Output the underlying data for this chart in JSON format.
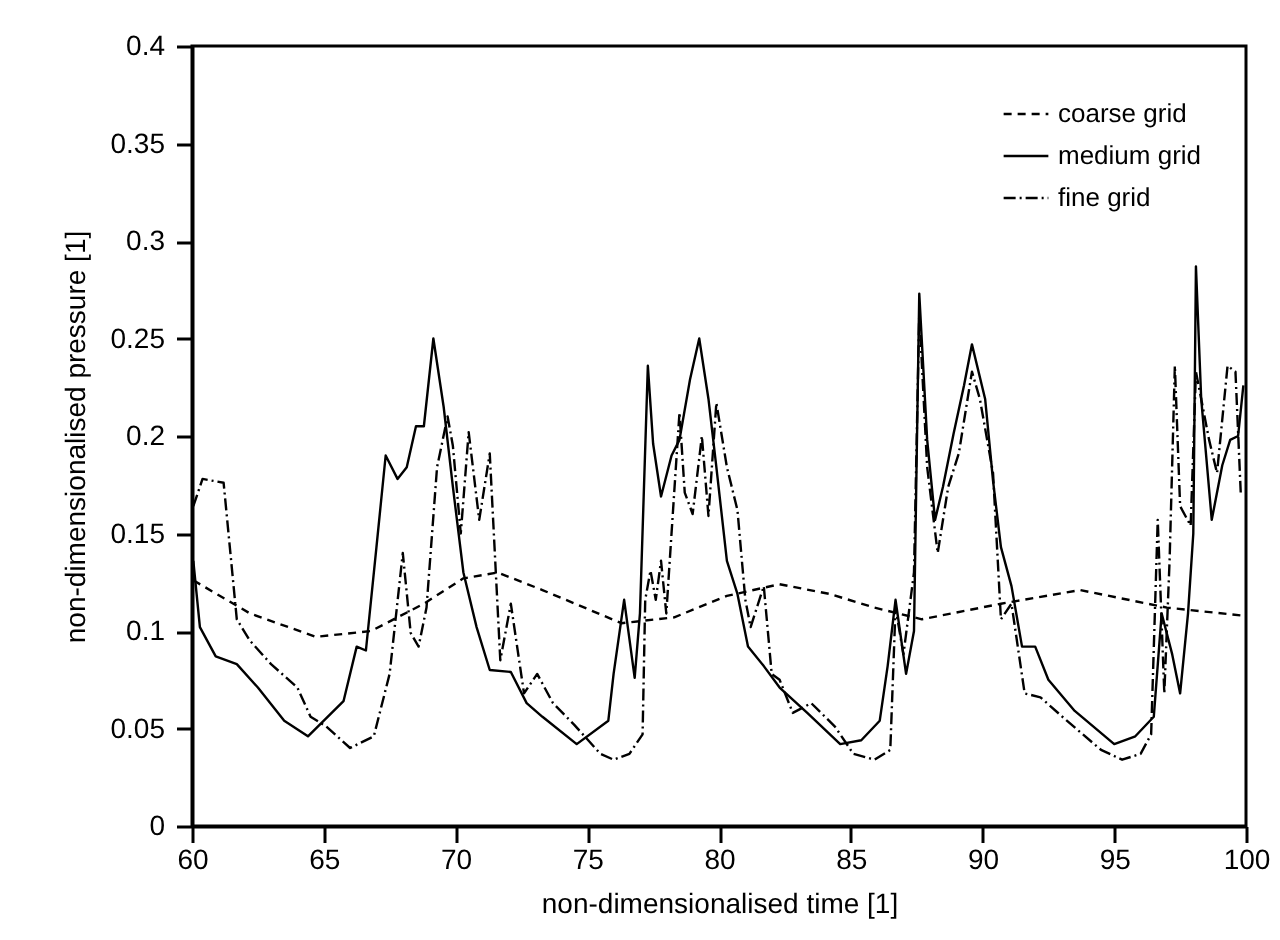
{
  "chart_data": {
    "type": "line",
    "xlabel": "non-dimensionalised time [1]",
    "ylabel": "non-dimensionalised pressure [1]",
    "xlim": [
      60,
      100
    ],
    "xticks": [
      60,
      65,
      70,
      75,
      80,
      85,
      90,
      95,
      100
    ],
    "ylim": [
      0,
      0.4
    ],
    "yticks": [
      0,
      0.05,
      0.1,
      0.15,
      0.2,
      0.25,
      0.3,
      0.35,
      0.4
    ],
    "grid": false,
    "legend": "top right",
    "marker": "none",
    "series": [
      {
        "name": "coarse grid",
        "color": "#000000",
        "line_style": "dashed",
        "x": [
          60.05,
          62.2,
          64.7,
          66.8,
          68.8,
          70.3,
          71.6,
          73.3,
          76.3,
          78.3,
          80.3,
          82.3,
          84.2,
          85.9,
          87.7,
          90.7,
          93.7,
          97.0,
          99.8
        ],
        "values": [
          0.126,
          0.109,
          0.097,
          0.1,
          0.114,
          0.127,
          0.13,
          0.121,
          0.104,
          0.107,
          0.118,
          0.124,
          0.119,
          0.112,
          0.106,
          0.114,
          0.121,
          0.112,
          0.108
        ]
      },
      {
        "name": "medium grid",
        "color": "#000000",
        "line_style": "solid",
        "x": [
          60.05,
          60.3,
          60.9,
          61.7,
          62.5,
          63.5,
          64.4,
          65.75,
          66.25,
          66.6,
          67.0,
          67.35,
          67.8,
          68.15,
          68.5,
          68.8,
          69.16,
          69.55,
          69.9,
          70.3,
          70.8,
          71.3,
          72.1,
          72.7,
          73.3,
          74.6,
          75.8,
          76.0,
          76.4,
          76.8,
          77.0,
          77.3,
          77.5,
          77.8,
          78.2,
          78.5,
          78.9,
          79.25,
          79.6,
          79.9,
          80.3,
          80.7,
          81.1,
          81.7,
          82.3,
          83.35,
          84.6,
          85.4,
          86.1,
          86.4,
          86.7,
          87.1,
          87.4,
          87.6,
          87.9,
          88.2,
          88.5,
          88.9,
          89.3,
          89.6,
          90.1,
          90.4,
          90.7,
          91.1,
          91.5,
          92.0,
          92.5,
          93.5,
          95.0,
          95.8,
          96.5,
          96.8,
          97.2,
          97.5,
          97.8,
          98.0,
          98.1,
          98.3,
          98.7,
          99.1,
          99.4,
          99.7,
          99.9
        ],
        "values": [
          0.136,
          0.102,
          0.087,
          0.083,
          0.071,
          0.054,
          0.046,
          0.064,
          0.092,
          0.09,
          0.143,
          0.19,
          0.178,
          0.184,
          0.205,
          0.205,
          0.25,
          0.215,
          0.174,
          0.13,
          0.102,
          0.08,
          0.079,
          0.063,
          0.056,
          0.042,
          0.054,
          0.078,
          0.116,
          0.076,
          0.109,
          0.236,
          0.196,
          0.169,
          0.19,
          0.198,
          0.229,
          0.25,
          0.219,
          0.184,
          0.136,
          0.119,
          0.092,
          0.082,
          0.071,
          0.058,
          0.042,
          0.044,
          0.054,
          0.082,
          0.116,
          0.078,
          0.1,
          0.273,
          0.198,
          0.157,
          0.174,
          0.201,
          0.226,
          0.247,
          0.219,
          0.177,
          0.143,
          0.123,
          0.092,
          0.092,
          0.075,
          0.059,
          0.042,
          0.046,
          0.056,
          0.109,
          0.088,
          0.068,
          0.109,
          0.15,
          0.287,
          0.219,
          0.157,
          0.185,
          0.198,
          0.2,
          0.226
        ]
      },
      {
        "name": "fine grid",
        "color": "#000000",
        "line_style": "dashdot",
        "x": [
          60.05,
          60.4,
          61.2,
          61.7,
          62.2,
          63.0,
          64.0,
          64.5,
          65.1,
          66.0,
          66.9,
          67.5,
          68.0,
          68.3,
          68.6,
          68.9,
          69.3,
          69.7,
          69.9,
          70.2,
          70.5,
          70.9,
          71.3,
          71.7,
          72.1,
          72.6,
          73.1,
          73.7,
          74.5,
          75.5,
          76.0,
          76.6,
          77.1,
          77.2,
          77.4,
          77.6,
          77.8,
          78.0,
          78.3,
          78.5,
          78.7,
          79.0,
          79.35,
          79.6,
          79.9,
          80.3,
          80.7,
          81.0,
          81.2,
          81.7,
          82.0,
          82.3,
          82.8,
          83.5,
          84.4,
          85.1,
          85.9,
          86.5,
          86.7,
          87.0,
          87.4,
          87.6,
          87.9,
          88.3,
          88.7,
          89.1,
          89.6,
          89.9,
          90.4,
          90.7,
          91.1,
          91.6,
          92.2,
          93.2,
          94.5,
          95.3,
          96.0,
          96.4,
          96.65,
          96.9,
          97.1,
          97.3,
          97.5,
          97.9,
          98.1,
          98.6,
          98.9,
          99.3,
          99.6,
          99.8
        ],
        "values": [
          0.164,
          0.178,
          0.176,
          0.106,
          0.095,
          0.083,
          0.071,
          0.056,
          0.051,
          0.04,
          0.046,
          0.078,
          0.14,
          0.099,
          0.092,
          0.112,
          0.184,
          0.21,
          0.195,
          0.15,
          0.202,
          0.157,
          0.191,
          0.085,
          0.114,
          0.068,
          0.078,
          0.063,
          0.052,
          0.037,
          0.034,
          0.037,
          0.047,
          0.116,
          0.131,
          0.116,
          0.136,
          0.109,
          0.171,
          0.212,
          0.171,
          0.16,
          0.2,
          0.159,
          0.217,
          0.184,
          0.162,
          0.116,
          0.102,
          0.123,
          0.078,
          0.075,
          0.058,
          0.063,
          0.051,
          0.037,
          0.034,
          0.039,
          0.112,
          0.088,
          0.13,
          0.263,
          0.184,
          0.14,
          0.174,
          0.191,
          0.233,
          0.219,
          0.181,
          0.106,
          0.114,
          0.068,
          0.066,
          0.054,
          0.039,
          0.034,
          0.037,
          0.047,
          0.157,
          0.068,
          0.136,
          0.236,
          0.164,
          0.154,
          0.233,
          0.198,
          0.181,
          0.236,
          0.233,
          0.171
        ]
      }
    ]
  }
}
